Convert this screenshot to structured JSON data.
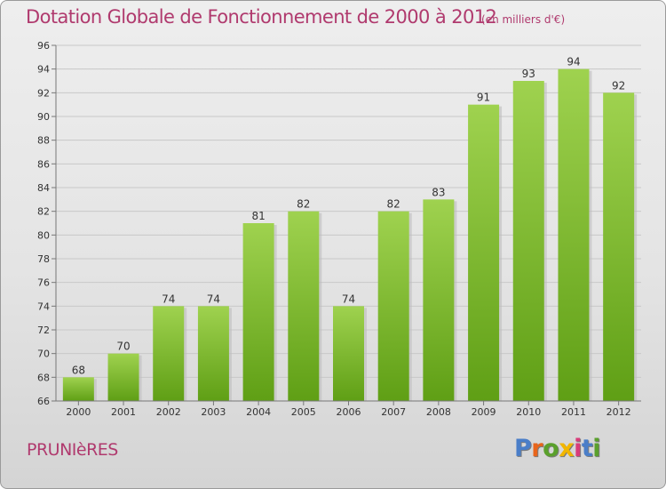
{
  "header": {
    "title": "Dotation Globale de Fonctionnement de 2000 à 2012",
    "subtitle": "(en milliers d'€)"
  },
  "footer": {
    "commune": "PRUNIèRES",
    "logo_text": "Proxiti",
    "logo_colors": [
      "#4a7ec8",
      "#e8651b",
      "#5aa02c",
      "#f2b600",
      "#d93b7a",
      "#4a7ec8",
      "#5aa02c"
    ]
  },
  "colors": {
    "title": "#b03a6e",
    "bar_light": "#9fd24f",
    "bar_dark": "#5f9f15",
    "grid": "#c8c8c8",
    "axis": "#777777"
  },
  "chart_data": {
    "type": "bar",
    "categories": [
      "2000",
      "2001",
      "2002",
      "2003",
      "2004",
      "2005",
      "2006",
      "2007",
      "2008",
      "2009",
      "2010",
      "2011",
      "2012"
    ],
    "values": [
      68,
      70,
      74,
      74,
      81,
      82,
      74,
      82,
      83,
      91,
      93,
      94,
      92
    ],
    "ylim": [
      66,
      96
    ],
    "yticks": [
      66,
      68,
      70,
      72,
      74,
      76,
      78,
      80,
      82,
      84,
      86,
      88,
      90,
      92,
      94,
      96
    ],
    "grid": true,
    "data_labels": true
  }
}
